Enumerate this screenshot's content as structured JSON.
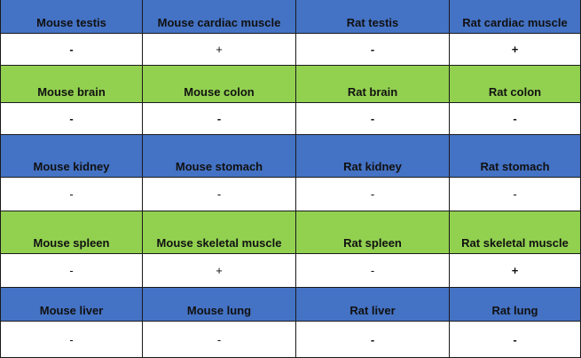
{
  "colors": {
    "header_blue": "#4472c4",
    "header_green": "#92d050",
    "value_bg": "#ffffff"
  },
  "rows": [
    {
      "kind": "header",
      "color": "blue",
      "cells": [
        "Mouse testis",
        "Mouse cardiac muscle",
        "Rat testis",
        "Rat cardiac muscle"
      ]
    },
    {
      "kind": "value",
      "cells": [
        "-",
        "+",
        "-",
        "+"
      ],
      "weights": [
        "bold",
        "normal",
        "bold",
        "bold"
      ]
    },
    {
      "kind": "header",
      "color": "green",
      "cells": [
        "Mouse brain",
        "Mouse colon",
        "Rat brain",
        "Rat colon"
      ]
    },
    {
      "kind": "value",
      "cells": [
        "-",
        "-",
        "-",
        "-"
      ],
      "weights": [
        "bold",
        "bold",
        "bold",
        "bold"
      ]
    },
    {
      "kind": "header",
      "color": "blue",
      "cells": [
        "Mouse kidney",
        "Mouse stomach",
        "Rat kidney",
        "Rat stomach"
      ]
    },
    {
      "kind": "value",
      "cells": [
        "-",
        "-",
        "-",
        "-"
      ],
      "weights": [
        "normal",
        "normal",
        "normal",
        "normal"
      ]
    },
    {
      "kind": "header",
      "color": "green",
      "cells": [
        "Mouse spleen",
        "Mouse skeletal muscle",
        "Rat spleen",
        "Rat skeletal muscle"
      ]
    },
    {
      "kind": "value",
      "cells": [
        "-",
        "+",
        "-",
        "+"
      ],
      "weights": [
        "normal",
        "normal",
        "normal",
        "bold"
      ]
    },
    {
      "kind": "header",
      "color": "blue",
      "cells": [
        "Mouse liver",
        "Mouse lung",
        "Rat liver",
        "Rat lung"
      ]
    },
    {
      "kind": "value",
      "cells": [
        "-",
        "-",
        "-",
        "-"
      ],
      "weights": [
        "normal",
        "normal",
        "bold",
        "bold"
      ]
    }
  ]
}
